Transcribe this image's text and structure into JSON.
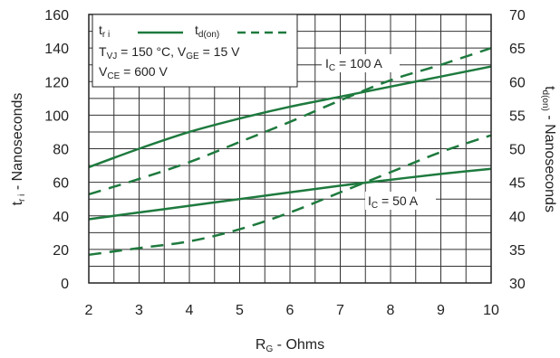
{
  "chart_data": {
    "type": "line",
    "xlabel": {
      "main": "R",
      "sub": "G",
      "rest": " - Ohms"
    },
    "ylabel_left": {
      "main": "t",
      "sub": "r i",
      "rest": " - Nanoseconds"
    },
    "ylabel_right": {
      "main": "t",
      "sub": "d(on)",
      "rest": " - Nanoseconds"
    },
    "xlim": [
      2,
      10
    ],
    "ylim_left": [
      0,
      160
    ],
    "ylim_right": [
      30,
      70
    ],
    "x_ticks": [
      "2",
      "3",
      "4",
      "5",
      "6",
      "7",
      "8",
      "9",
      "10"
    ],
    "y_left_ticks": [
      "0",
      "20",
      "40",
      "60",
      "80",
      "100",
      "120",
      "140",
      "160"
    ],
    "y_right_ticks": [
      "30",
      "35",
      "40",
      "45",
      "50",
      "55",
      "60",
      "65",
      "70"
    ],
    "grid": true,
    "line_color": "#1e7a3e",
    "legend": {
      "placement": "top-left",
      "tri": {
        "main": "t",
        "sub": "r i"
      },
      "tdon": {
        "main": "t",
        "sub": "d(on)"
      },
      "cond1": {
        "p1": "T",
        "s1": "VJ",
        "p2": " = 150 °C,  V",
        "s2": "GE",
        "p3": " = 15 V"
      },
      "cond2": {
        "p1": "V",
        "s1": "CE",
        "p2": " = 600 V"
      }
    },
    "annotations": {
      "ic100": {
        "main": "I",
        "sub": "C",
        "rest": " = 100 A"
      },
      "ic50": {
        "main": "I",
        "sub": "C",
        "rest": " = 50 A"
      }
    },
    "series": [
      {
        "axis": "left",
        "style": "solid",
        "condition": "ic100",
        "x": [
          2,
          3,
          4,
          5,
          6,
          7,
          8,
          9,
          10
        ],
        "y": [
          69,
          80,
          90,
          98,
          105,
          111,
          117,
          123,
          129
        ]
      },
      {
        "axis": "right",
        "style": "dashed",
        "condition": "ic100",
        "x": [
          2,
          3,
          4,
          5,
          6,
          7,
          8,
          9,
          10
        ],
        "y": [
          43.2,
          45.5,
          48,
          51,
          54,
          57.2,
          60.2,
          62.5,
          65
        ]
      },
      {
        "axis": "left",
        "style": "solid",
        "condition": "ic50",
        "x": [
          2,
          3,
          4,
          5,
          6,
          7,
          8,
          9,
          10
        ],
        "y": [
          38,
          42,
          46,
          50,
          54,
          58,
          61.5,
          65,
          68
        ]
      },
      {
        "axis": "right",
        "style": "dashed",
        "condition": "ic50",
        "x": [
          2,
          3,
          4,
          5,
          6,
          7,
          8,
          9,
          10
        ],
        "y": [
          34.2,
          35.2,
          36.2,
          38,
          40.5,
          43.5,
          46.5,
          49.5,
          52
        ]
      }
    ]
  }
}
